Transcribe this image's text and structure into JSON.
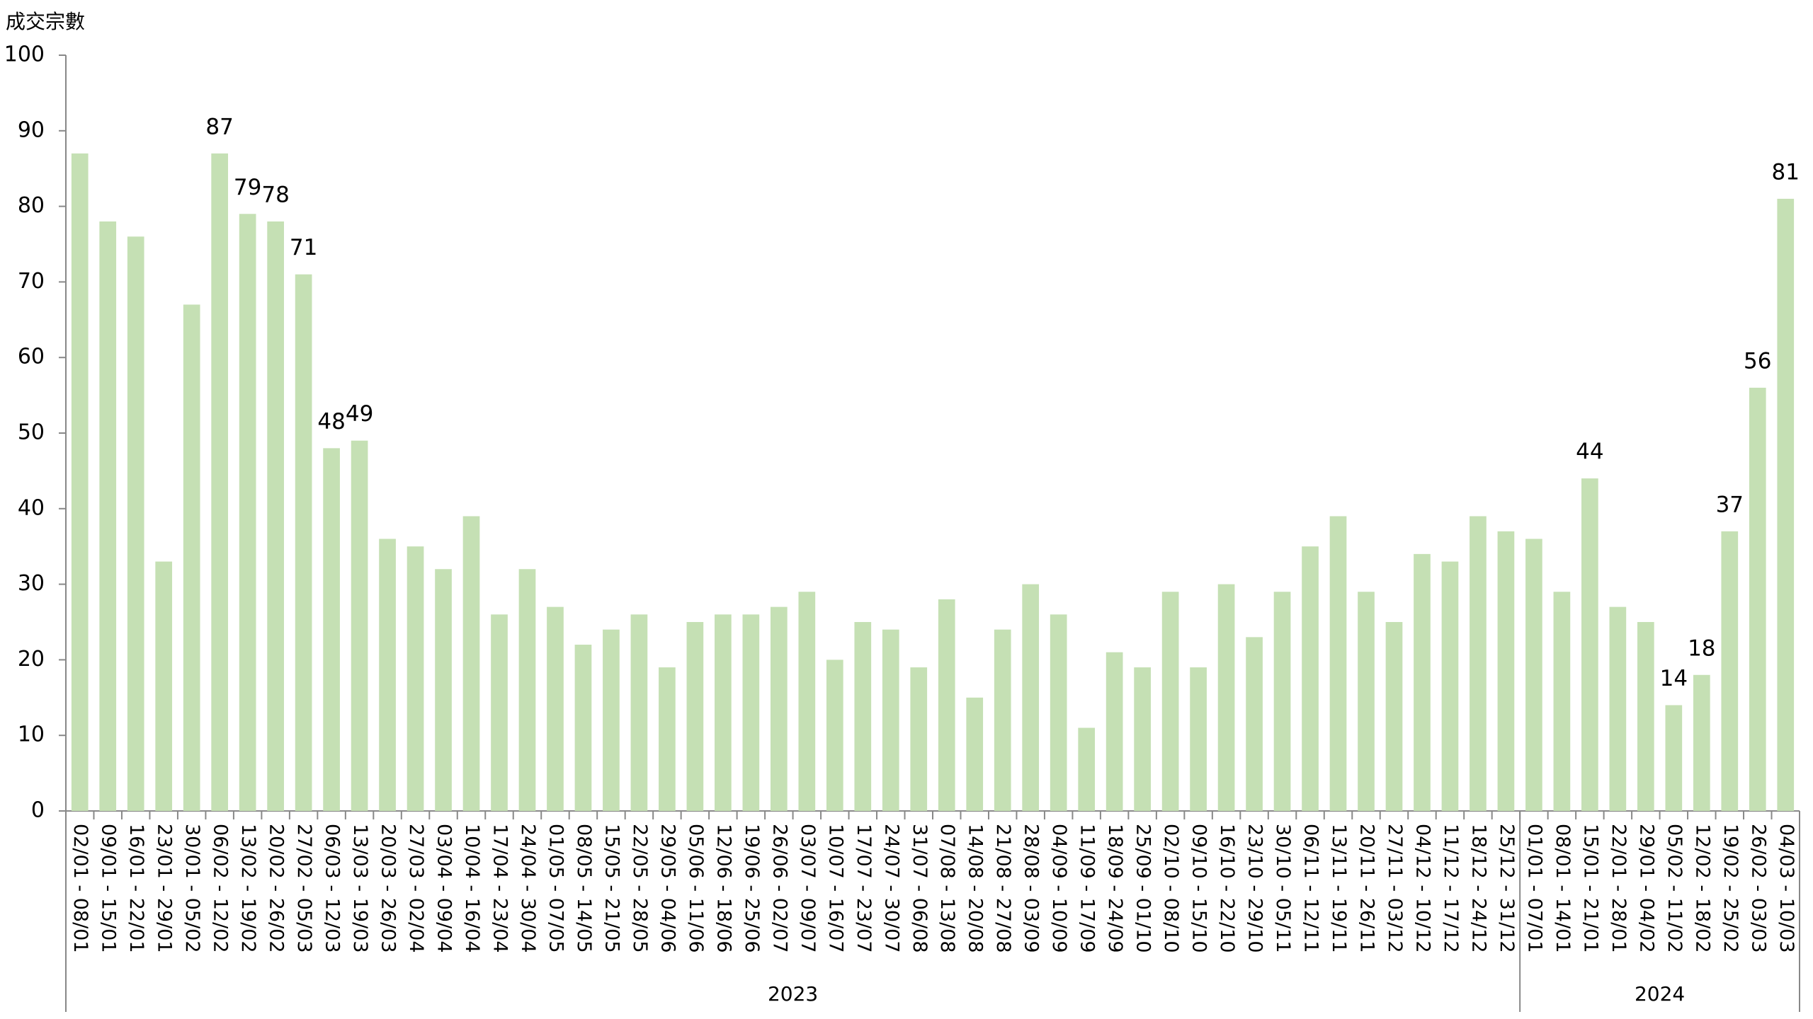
{
  "chart_data": {
    "type": "bar",
    "y_axis_label": "成交宗數",
    "categories": [
      "02/01 - 08/01",
      "09/01 - 15/01",
      "16/01 - 22/01",
      "23/01 - 29/01",
      "30/01 - 05/02",
      "06/02 - 12/02",
      "13/02 - 19/02",
      "20/02 - 26/02",
      "27/02 - 05/03",
      "06/03 - 12/03",
      "13/03 - 19/03",
      "20/03 - 26/03",
      "27/03 - 02/04",
      "03/04 - 09/04",
      "10/04 - 16/04",
      "17/04 - 23/04",
      "24/04 - 30/04",
      "01/05 - 07/05",
      "08/05 - 14/05",
      "15/05 - 21/05",
      "22/05 - 28/05",
      "29/05 - 04/06",
      "05/06 - 11/06",
      "12/06 - 18/06",
      "19/06 - 25/06",
      "26/06 - 02/07",
      "03/07 - 09/07",
      "10/07 - 16/07",
      "17/07 - 23/07",
      "24/07 - 30/07",
      "31/07 - 06/08",
      "07/08 - 13/08",
      "14/08 - 20/08",
      "21/08 - 27/08",
      "28/08 - 03/09",
      "04/09 - 10/09",
      "11/09 - 17/09",
      "18/09 - 24/09",
      "25/09 - 01/10",
      "02/10 - 08/10",
      "09/10 - 15/10",
      "16/10 - 22/10",
      "23/10 - 29/10",
      "30/10 - 05/11",
      "06/11 - 12/11",
      "13/11 - 19/11",
      "20/11 - 26/11",
      "27/11 - 03/12",
      "04/12 - 10/12",
      "11/12 - 17/12",
      "18/12 - 24/12",
      "25/12 - 31/12",
      "01/01 - 07/01",
      "08/01 - 14/01",
      "15/01 - 21/01",
      "22/01 - 28/01",
      "29/01 - 04/02",
      "05/02 - 11/02",
      "12/02 - 18/02",
      "19/02 - 25/02",
      "26/02 - 03/03",
      "04/03 - 10/03"
    ],
    "values": [
      87,
      78,
      76,
      33,
      67,
      87,
      79,
      78,
      71,
      48,
      49,
      36,
      35,
      32,
      39,
      26,
      32,
      27,
      22,
      24,
      26,
      19,
      25,
      26,
      26,
      27,
      29,
      20,
      25,
      24,
      19,
      28,
      15,
      24,
      30,
      26,
      11,
      21,
      19,
      29,
      19,
      30,
      23,
      29,
      35,
      39,
      29,
      25,
      34,
      33,
      39,
      37,
      36,
      29,
      44,
      27,
      25,
      14,
      18,
      37,
      56,
      81
    ],
    "data_labels": [
      false,
      false,
      false,
      false,
      false,
      true,
      true,
      true,
      true,
      true,
      true,
      false,
      false,
      false,
      false,
      false,
      false,
      false,
      false,
      false,
      false,
      false,
      false,
      false,
      false,
      false,
      false,
      false,
      false,
      false,
      false,
      false,
      false,
      false,
      false,
      false,
      false,
      false,
      false,
      false,
      false,
      false,
      false,
      false,
      false,
      false,
      false,
      false,
      false,
      false,
      false,
      false,
      false,
      false,
      true,
      false,
      false,
      true,
      true,
      true,
      true,
      true
    ],
    "x_groups": [
      {
        "label": "2023",
        "size": 52
      },
      {
        "label": "2024",
        "size": 10
      }
    ],
    "color": "#c5e0b4",
    "ylim": [
      0,
      100
    ],
    "yticks": [
      0,
      10,
      20,
      30,
      40,
      50,
      60,
      70,
      80,
      90,
      100
    ],
    "grid": false
  }
}
